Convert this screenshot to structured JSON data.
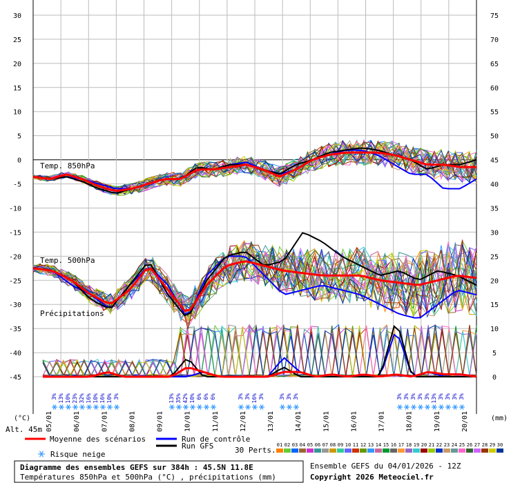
{
  "chart_data": {
    "type": "line",
    "title": "Diagramme des ensembles GEFS sur 384h : 45.5N 11.8E",
    "subtitle": "Températures 850hPa et 500hPa (°C) , précipitations (mm)",
    "run_label": "Ensemble GEFS du 04/01/2026 - 12Z",
    "copyright": "Copyright 2026 Meteociel.fr",
    "left_axis": {
      "unit": "(°C)",
      "min": -45,
      "max": 30,
      "ticks": [
        30,
        25,
        20,
        15,
        10,
        5,
        0,
        -5,
        -10,
        -15,
        -20,
        -25,
        -30,
        -35,
        -40,
        -45
      ]
    },
    "right_axis": {
      "unit": "(mm)",
      "min": 0,
      "max": 75,
      "ticks": [
        75,
        70,
        65,
        60,
        55,
        50,
        45,
        40,
        35,
        30,
        25,
        20,
        15,
        10,
        5,
        0
      ]
    },
    "altitude_label": "Alt. 45m",
    "x_labels": [
      "05/01",
      "06/01",
      "07/01",
      "08/01",
      "09/01",
      "10/01",
      "11/01",
      "12/01",
      "13/01",
      "14/01",
      "15/01",
      "16/01",
      "17/01",
      "18/01",
      "19/01",
      "20/01"
    ],
    "section_labels": {
      "t850": "Temp. 850hPa",
      "t500": "Temp. 500hPa",
      "precip": "Précipitations"
    },
    "snow_risk": {
      "group1": [
        "3%",
        "13%",
        "10%",
        "23%",
        "32%",
        "16%",
        "10%",
        "16%",
        "10%",
        "3%"
      ],
      "group2": [
        "13%",
        "35%",
        "42%",
        "10%",
        "6%",
        "6%",
        "6%"
      ],
      "group3": [
        "3%",
        "3%",
        "16%",
        "3%"
      ],
      "group4": [
        "3%",
        "3%",
        "3%"
      ],
      "group5": [
        "3%",
        "3%",
        "3%",
        "3%"
      ],
      "group6": [
        "3%",
        "13%",
        "3%",
        "3%",
        "3%",
        "3%"
      ]
    },
    "legend": {
      "mean": "Moyenne des scénarios",
      "control": "Run de contrôle",
      "gfs": "Run GFS",
      "snow": "Risque neige",
      "perts_label": "30 Perts.",
      "pert_numbers": [
        "01",
        "02",
        "03",
        "04",
        "05",
        "06",
        "07",
        "08",
        "09",
        "10",
        "11",
        "12",
        "13",
        "14",
        "15",
        "16",
        "17",
        "18",
        "19",
        "20",
        "21",
        "22",
        "23",
        "24",
        "25",
        "26",
        "27",
        "28",
        "29",
        "30"
      ],
      "pert_colors": [
        "#ff7f00",
        "#66cc33",
        "#0066ff",
        "#996633",
        "#cc33cc",
        "#339999",
        "#999999",
        "#cc9900",
        "#33cc99",
        "#6666ff",
        "#cc3300",
        "#669900",
        "#3399ff",
        "#cc6699",
        "#009933",
        "#666666",
        "#ff9933",
        "#9966cc",
        "#33cccc",
        "#990000",
        "#99cc00",
        "#0033cc",
        "#cc9966",
        "#669999",
        "#ff66cc",
        "#336633",
        "#cc66ff",
        "#993300",
        "#cccc00",
        "#003399"
      ]
    },
    "series": {
      "mean_t850": [
        -3.5,
        -4,
        -3,
        -4,
        -5.5,
        -6.5,
        -6,
        -5,
        -4,
        -4,
        -2,
        -2,
        -1.5,
        -1,
        -2,
        -3.5,
        -2,
        0,
        1,
        1.5,
        1.5,
        1.5,
        1,
        0,
        -1,
        -1,
        -1.5,
        -1.5
      ],
      "mean_t500": [
        -22.5,
        -23,
        -25,
        -28,
        -30,
        -27,
        -22,
        -27,
        -32,
        -26,
        -22,
        -21,
        -22,
        -23,
        -23.5,
        -24,
        -24,
        -24,
        -25,
        -25.5,
        -26,
        -25,
        -24,
        -24.5
      ],
      "mean_precip": [
        0,
        0,
        0,
        0,
        1,
        0,
        0,
        0,
        0,
        2,
        1,
        0,
        0,
        0,
        0,
        1,
        1,
        0,
        0.5,
        0,
        0.5,
        0,
        0.5,
        0,
        1,
        0.5,
        0.5,
        0
      ],
      "control_t850": [
        -3.5,
        -4,
        -3.5,
        -4,
        -5,
        -6,
        -6,
        -5,
        -4,
        -4,
        -2,
        -2,
        -1,
        -0.5,
        -2,
        -3,
        -2,
        0,
        1,
        2,
        2,
        1,
        -1,
        -3,
        -3,
        -6,
        -6,
        -4
      ],
      "control_t500": [
        -22.5,
        -23,
        -26,
        -28,
        -31,
        -26,
        -22,
        -26,
        -33,
        -24,
        -20,
        -20,
        -24,
        -28,
        -27,
        -26,
        -27,
        -28,
        -30,
        -32,
        -33,
        -30,
        -27,
        -28
      ],
      "control_precip": [
        0,
        0,
        0,
        0,
        0,
        0,
        0,
        0,
        0,
        0,
        1,
        0,
        0,
        0,
        0,
        4,
        1,
        0,
        0,
        0,
        0,
        0,
        10,
        0,
        1,
        0,
        0,
        0
      ],
      "gfs_t850": [
        -3.5,
        -4,
        -3.5,
        -4.5,
        -6,
        -7,
        -6,
        -5,
        -4,
        -4,
        -1.5,
        -2,
        -1,
        -1,
        -2,
        -3,
        -1,
        0,
        1.5,
        2,
        2.5,
        2,
        1,
        0,
        -2,
        -1,
        -1,
        0
      ],
      "gfs_t500": [
        -22.5,
        -23,
        -25,
        -29,
        -31,
        -26,
        -21,
        -28,
        -33,
        -25,
        -20,
        -19,
        -22,
        -21,
        -15,
        -17,
        -20,
        -22,
        -24,
        -23,
        -25,
        -23,
        -24,
        -26
      ],
      "gfs_precip": [
        0,
        0,
        0,
        0,
        0,
        0,
        0,
        0,
        0,
        4,
        0,
        0,
        0,
        0,
        0,
        2,
        0,
        0,
        0,
        0,
        0,
        0,
        12,
        0,
        0,
        0,
        0,
        0
      ]
    }
  }
}
